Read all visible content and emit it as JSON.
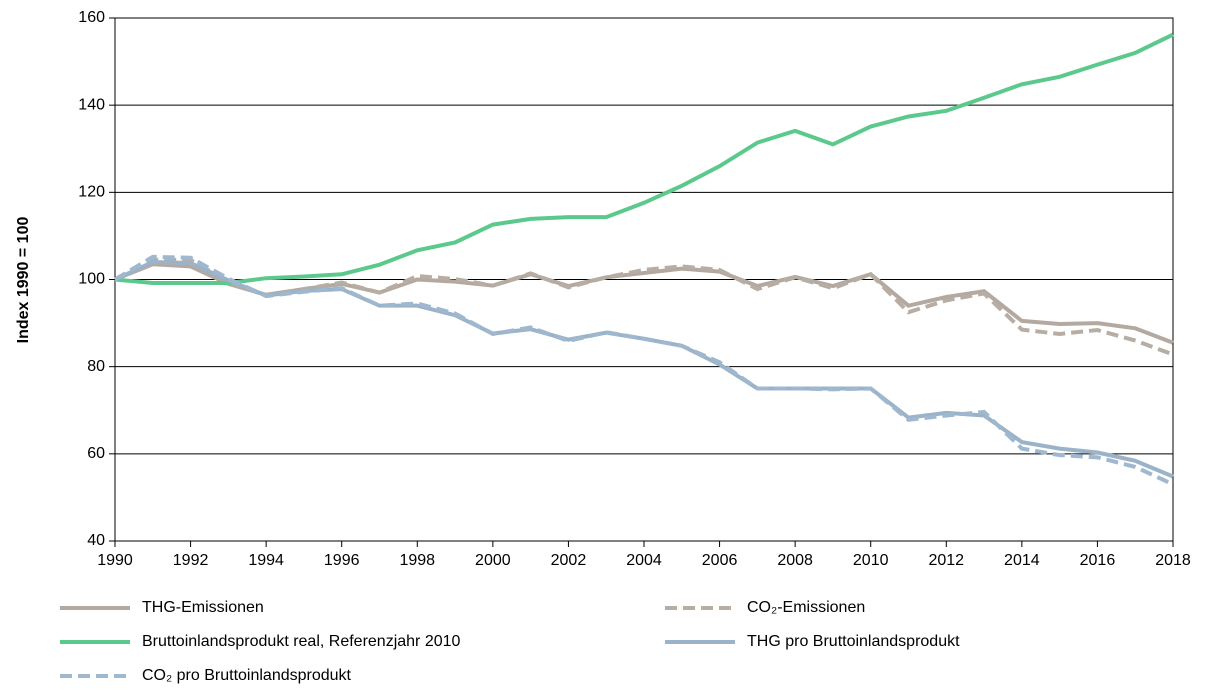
{
  "chart_data": {
    "type": "line",
    "y_label": "Index 1990 = 100",
    "x": [
      1990,
      1991,
      1992,
      1993,
      1994,
      1995,
      1996,
      1997,
      1998,
      1999,
      2000,
      2001,
      2002,
      2003,
      2004,
      2005,
      2006,
      2007,
      2008,
      2009,
      2010,
      2011,
      2012,
      2013,
      2014,
      2015,
      2016,
      2017,
      2018
    ],
    "xlim": [
      1990,
      2018
    ],
    "xticks": [
      1990,
      1992,
      1994,
      1996,
      1998,
      2000,
      2002,
      2004,
      2006,
      2008,
      2010,
      2012,
      2014,
      2016,
      2018
    ],
    "ylim": [
      40,
      160
    ],
    "yticks": [
      40,
      60,
      80,
      100,
      120,
      140,
      160
    ],
    "grid": true,
    "legend": "bottom",
    "series": [
      {
        "name": "THG-Emissionen",
        "color": "#b4a9a0",
        "dashed": false,
        "values": [
          100,
          103.5,
          103,
          99,
          96.5,
          97.8,
          99,
          97,
          100,
          99.5,
          98.6,
          101.2,
          98.5,
          100.5,
          101.5,
          102.5,
          101.8,
          98.5,
          100.6,
          98.5,
          101.2,
          94,
          96,
          97.3,
          90.5,
          89.8,
          90,
          88.8,
          85.5
        ]
      },
      {
        "name": "CO₂-Emissionen",
        "color": "#b8ada3",
        "dashed": true,
        "values": [
          100,
          104.5,
          104.5,
          99.5,
          96.3,
          97.8,
          99.3,
          97,
          100.8,
          100.1,
          98.6,
          101.4,
          98.2,
          100.5,
          102.2,
          103,
          102.2,
          97.8,
          100.5,
          98,
          101.2,
          92.5,
          95.2,
          96.8,
          88.5,
          87.5,
          88.4,
          86,
          82.8
        ]
      },
      {
        "name": "Bruttoinlandsprodukt real, Referenzjahr 2010",
        "color": "#5cc98c",
        "dashed": false,
        "values": [
          100,
          99.2,
          99.2,
          99.2,
          100.3,
          100.7,
          101.2,
          103.4,
          106.7,
          108.5,
          112.6,
          113.9,
          114.3,
          114.3,
          117.6,
          121.5,
          126,
          131.4,
          134.1,
          131,
          135.1,
          137.4,
          138.7,
          141.7,
          144.8,
          146.5,
          149.3,
          152,
          156.2
        ]
      },
      {
        "name": "THG pro Bruttoinlandsprodukt",
        "color": "#9bb3c8",
        "dashed": false,
        "values": [
          100,
          104,
          103.8,
          99.8,
          96.3,
          97.4,
          97.8,
          94,
          94,
          91.8,
          87.6,
          88.6,
          86.2,
          87.8,
          86.4,
          84.8,
          80.5,
          75,
          75,
          75,
          75,
          68.3,
          69.4,
          68.8,
          62.7,
          61.2,
          60.3,
          58.4,
          54.8
        ]
      },
      {
        "name": "CO₂ pro Bruttoinlandsprodukt",
        "color": "#9fb8cf",
        "dashed": true,
        "values": [
          100,
          105.2,
          105,
          100.2,
          96.2,
          97.2,
          98,
          94,
          94.5,
          92.2,
          87.5,
          89,
          85.9,
          87.9,
          86.4,
          84.8,
          81,
          75,
          75,
          74.8,
          75,
          67.8,
          68.8,
          69.6,
          61.2,
          59.7,
          59.2,
          57,
          53
        ]
      }
    ]
  }
}
